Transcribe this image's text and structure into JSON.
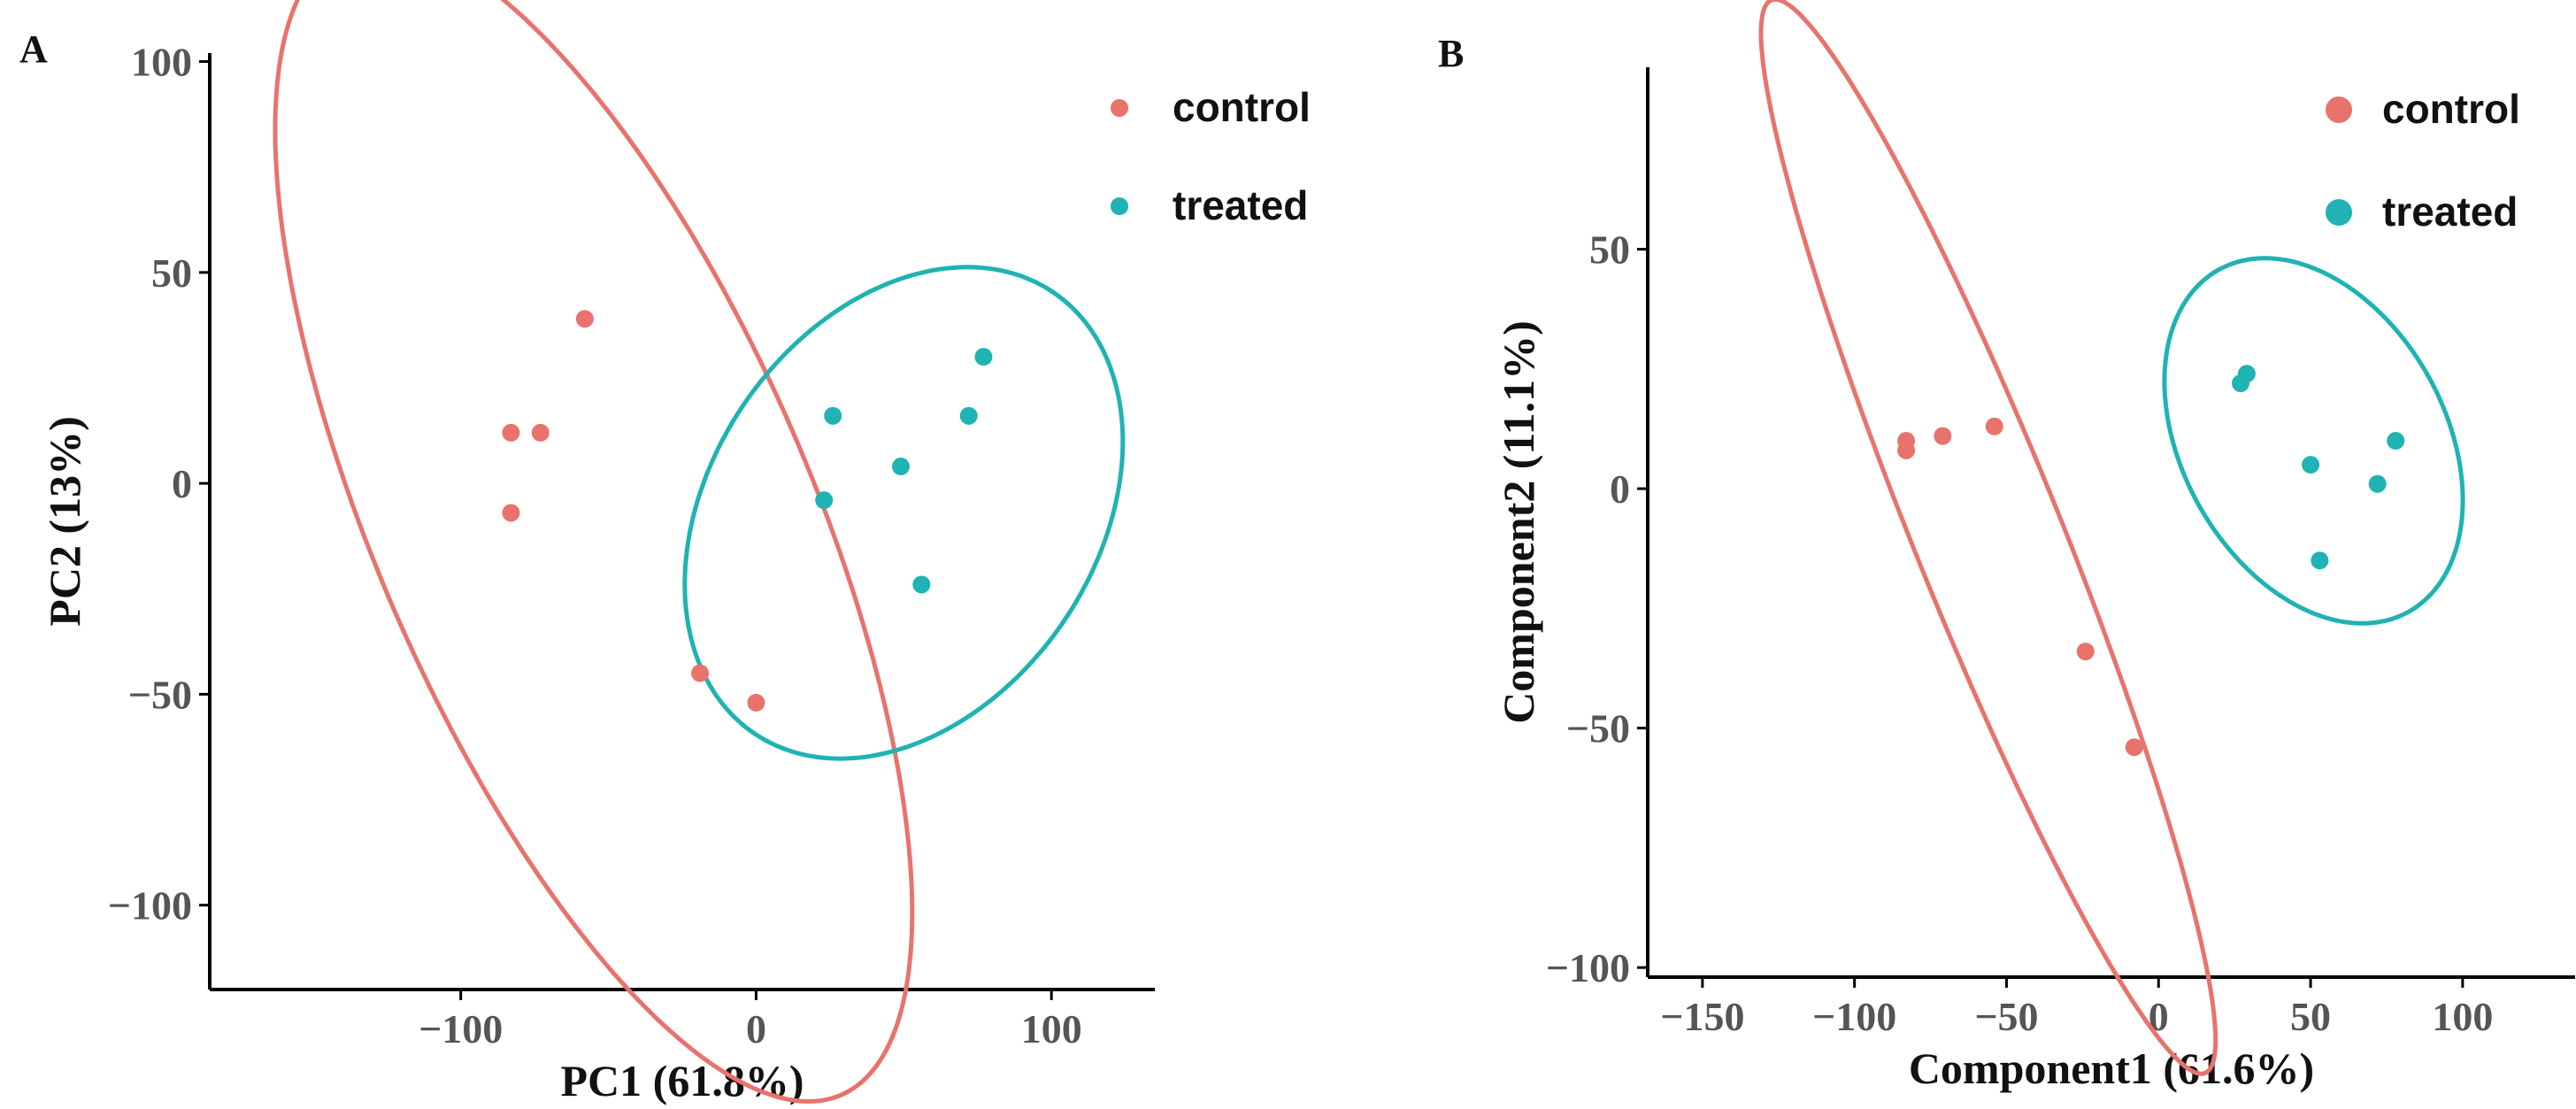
{
  "chart_data": [
    {
      "panel_label": "A",
      "type": "scatter",
      "xlabel": "PC1 (61.8%)",
      "ylabel": "PC2 (13%)",
      "xlim": [
        -185,
        135
      ],
      "ylim": [
        -120,
        102
      ],
      "xticks": [
        -100,
        0,
        100
      ],
      "yticks": [
        -100,
        -50,
        0,
        50,
        100
      ],
      "xtick_labels": [
        "−100",
        "0",
        "100"
      ],
      "ytick_labels": [
        "−100",
        "−50",
        "0",
        "50",
        "100"
      ],
      "legend": {
        "position": "top-right",
        "entries": [
          "control",
          "treated"
        ]
      },
      "series": [
        {
          "name": "control",
          "color": "#e8736c",
          "points": [
            [
              -58,
              39
            ],
            [
              -83,
              12
            ],
            [
              -73,
              12
            ],
            [
              -83,
              -7
            ],
            [
              -19,
              -45
            ],
            [
              0,
              -52
            ]
          ],
          "ellipse": {
            "center": [
              -55,
              -9
            ],
            "semi_major": 161,
            "semi_minor": 68,
            "angle_deg": -55
          }
        },
        {
          "name": "treated",
          "color": "#1fb3b3",
          "points": [
            [
              77,
              30
            ],
            [
              26,
              16
            ],
            [
              72,
              16
            ],
            [
              49,
              4
            ],
            [
              23,
              -4
            ],
            [
              56,
              -24
            ]
          ],
          "ellipse": {
            "center": [
              50,
              -7
            ],
            "semi_major": 78,
            "semi_minor": 53,
            "angle_deg": 25
          }
        }
      ]
    },
    {
      "panel_label": "B",
      "type": "scatter",
      "xlabel": "Component1 (61.6%)",
      "ylabel": "Component2 (11.1%)",
      "xlim": [
        -168,
        137
      ],
      "ylim": [
        -102,
        88
      ],
      "xticks": [
        -150,
        -100,
        -50,
        0,
        50,
        100
      ],
      "yticks": [
        -100,
        -50,
        0,
        50
      ],
      "xtick_labels": [
        "−150",
        "−100",
        "−50",
        "0",
        "50",
        "100"
      ],
      "ytick_labels": [
        "−100",
        "−50",
        "0",
        "50"
      ],
      "legend": {
        "position": "top-right",
        "entries": [
          "control",
          "treated"
        ]
      },
      "series": [
        {
          "name": "control",
          "color": "#e8736c",
          "points": [
            [
              -83,
              10
            ],
            [
              -83,
              8
            ],
            [
              -71,
              11
            ],
            [
              -54,
              13
            ],
            [
              -24,
              -34
            ],
            [
              -8,
              -54
            ]
          ],
          "ellipse": {
            "center": [
              -56,
              -10
            ],
            "semi_major": 133,
            "semi_minor": 22,
            "angle_deg": -57
          }
        },
        {
          "name": "treated",
          "color": "#1fb3b3",
          "points": [
            [
              29,
              24
            ],
            [
              27,
              22
            ],
            [
              78,
              10
            ],
            [
              50,
              5
            ],
            [
              72,
              1
            ],
            [
              53,
              -15
            ]
          ],
          "ellipse": {
            "center": [
              51,
              10
            ],
            "semi_major": 52,
            "semi_minor": 34,
            "angle_deg": -26
          }
        }
      ]
    }
  ]
}
